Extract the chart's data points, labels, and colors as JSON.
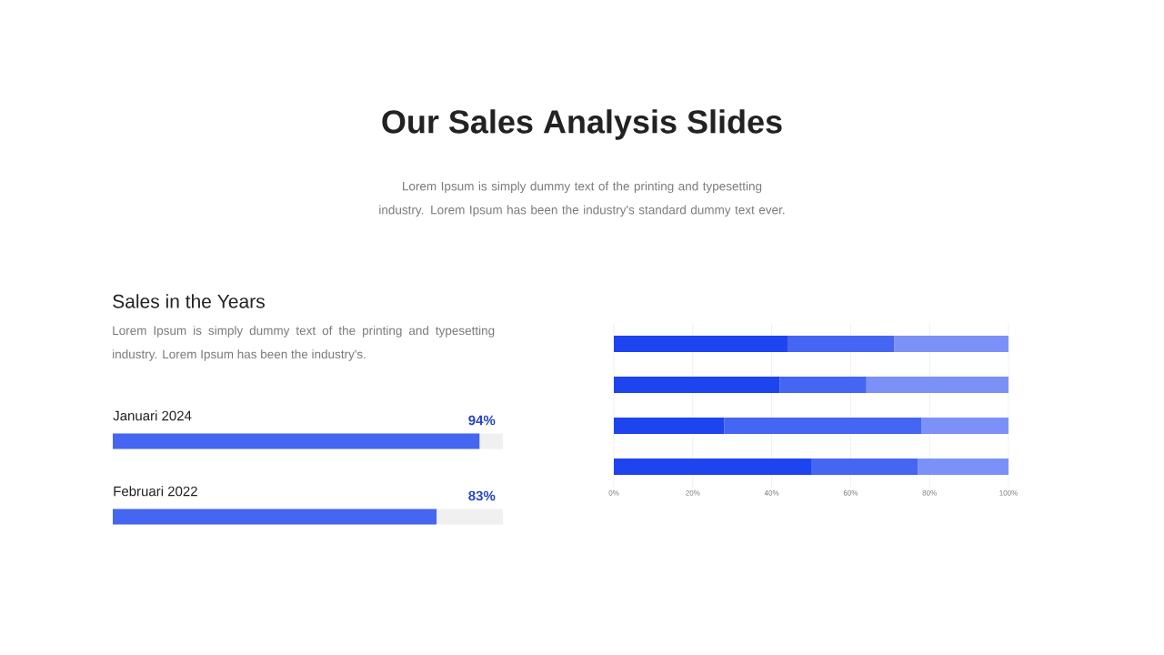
{
  "chart_data": [
    {
      "type": "bar",
      "orientation": "horizontal",
      "title": "Our Sales Analysis Slides",
      "subtitle": "Lorem Ipsum is simply dummy text of the printing and typesetting industry. Lorem Ipsum has been the industry's standard dummy text ever.",
      "annotations": [
        "Sales in the Years",
        "Lorem Ipsum is simply dummy text of the printing and typesetting industry. Lorem Ipsum has been the industry's."
      ],
      "categories": [
        "Januari 2024",
        "Februari 2022"
      ],
      "values": [
        94,
        83
      ],
      "value_labels": [
        "94%",
        "83%"
      ],
      "color": "#4466f0",
      "xlim": [
        0,
        100
      ],
      "tick_labels": "y"
    },
    {
      "type": "bar",
      "orientation": "horizontal",
      "stacked": true,
      "categories": [
        null,
        null,
        null,
        null
      ],
      "series": [
        {
          "color": "#1e44f0",
          "values": [
            44,
            42,
            28,
            50
          ]
        },
        {
          "color": "#4466f2",
          "values": [
            27,
            22,
            50,
            27
          ]
        },
        {
          "color": "#7b91f7",
          "values": [
            29,
            36,
            22,
            23
          ]
        }
      ],
      "xlim": [
        0,
        100
      ],
      "xticks": [
        {
          "value": 0,
          "label": "0%"
        },
        {
          "value": 20,
          "label": "20%"
        },
        {
          "value": 40,
          "label": "40%"
        },
        {
          "value": 60,
          "label": "60%"
        },
        {
          "value": 80,
          "label": "80%"
        },
        {
          "value": 100,
          "label": "100%"
        }
      ],
      "grid": "x"
    }
  ]
}
